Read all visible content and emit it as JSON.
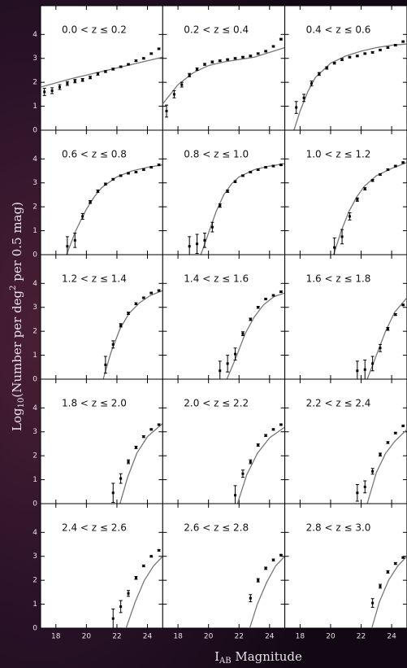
{
  "figure": {
    "ylabel": {
      "a": "Log",
      "b": "10",
      "c": "(Number per deg",
      "d": "2",
      "e": " per 0.5 mag)"
    },
    "xlabel": {
      "a": "I",
      "b": "AB",
      "c": " Magnitude"
    }
  },
  "chart_data": [
    {
      "type": "scatter",
      "title": "0.0 < z ≤ 0.2",
      "color": "#000000",
      "model_color": "#777777",
      "xlim": [
        17,
        25
      ],
      "ylim": [
        0,
        5.2
      ],
      "xticks": [
        18,
        20,
        22,
        24
      ],
      "yticks": [
        0,
        1,
        2,
        3,
        4
      ],
      "x": [
        17.25,
        17.75,
        18.25,
        18.75,
        19.25,
        19.75,
        20.25,
        20.75,
        21.25,
        21.75,
        22.25,
        22.75,
        23.25,
        23.75,
        24.25,
        24.75
      ],
      "values": [
        1.6,
        1.65,
        1.8,
        1.95,
        2.05,
        2.1,
        2.2,
        2.35,
        2.45,
        2.55,
        2.65,
        2.75,
        2.9,
        3.0,
        3.2,
        3.4
      ],
      "errors": [
        0.15,
        0.12,
        0.1,
        0.08,
        0.07,
        0.06,
        0.05,
        0.05,
        0.04,
        0.04,
        0.03,
        0.03,
        0.03,
        0.03,
        0.03,
        0.03
      ],
      "model_x": [
        17,
        19,
        21,
        23,
        25
      ],
      "model_y": [
        1.8,
        2.15,
        2.45,
        2.75,
        3.05
      ]
    },
    {
      "type": "scatter",
      "title": "0.2 < z ≤ 0.4",
      "color": "#000000",
      "model_color": "#777777",
      "xlim": [
        17,
        25
      ],
      "ylim": [
        0,
        5.2
      ],
      "xticks": [
        18,
        20,
        22,
        24
      ],
      "yticks": [
        0,
        1,
        2,
        3,
        4
      ],
      "x": [
        17.25,
        17.75,
        18.25,
        18.75,
        19.25,
        19.75,
        20.25,
        20.75,
        21.25,
        21.75,
        22.25,
        22.75,
        23.25,
        23.75,
        24.25,
        24.75
      ],
      "values": [
        0.8,
        1.5,
        1.9,
        2.3,
        2.55,
        2.75,
        2.85,
        2.9,
        2.95,
        3.0,
        3.05,
        3.1,
        3.2,
        3.3,
        3.5,
        3.8
      ],
      "errors": [
        0.25,
        0.15,
        0.1,
        0.07,
        0.05,
        0.04,
        0.04,
        0.03,
        0.03,
        0.03,
        0.03,
        0.03,
        0.03,
        0.03,
        0.03,
        0.03
      ],
      "model_x": [
        17,
        17.5,
        18,
        19,
        20,
        21,
        22,
        23,
        24,
        25
      ],
      "model_y": [
        1.1,
        1.5,
        1.9,
        2.4,
        2.7,
        2.85,
        2.95,
        3.05,
        3.25,
        3.45
      ]
    },
    {
      "type": "scatter",
      "title": "0.4 < z ≤ 0.6",
      "color": "#000000",
      "model_color": "#777777",
      "xlim": [
        17,
        25
      ],
      "ylim": [
        0,
        5.2
      ],
      "xticks": [
        18,
        20,
        22,
        24
      ],
      "yticks": [
        0,
        1,
        2,
        3,
        4
      ],
      "x": [
        17.75,
        18.25,
        18.75,
        19.25,
        19.75,
        20.25,
        20.75,
        21.25,
        21.75,
        22.25,
        22.75,
        23.25,
        23.75,
        24.25,
        24.75
      ],
      "values": [
        0.95,
        1.35,
        1.95,
        2.35,
        2.6,
        2.8,
        2.95,
        3.05,
        3.1,
        3.2,
        3.25,
        3.35,
        3.45,
        3.55,
        3.7
      ],
      "errors": [
        0.25,
        0.15,
        0.1,
        0.06,
        0.05,
        0.04,
        0.04,
        0.03,
        0.03,
        0.03,
        0.03,
        0.03,
        0.03,
        0.03,
        0.03
      ],
      "model_x": [
        17.6,
        18,
        18.5,
        19,
        20,
        21,
        22,
        23,
        24,
        25
      ],
      "model_y": [
        0,
        0.8,
        1.6,
        2.2,
        2.8,
        3.1,
        3.3,
        3.45,
        3.55,
        3.6
      ]
    },
    {
      "type": "scatter",
      "title": "0.6 < z ≤ 0.8",
      "color": "#000000",
      "model_color": "#777777",
      "xlim": [
        17,
        25
      ],
      "ylim": [
        0,
        5.2
      ],
      "xticks": [
        18,
        20,
        22,
        24
      ],
      "yticks": [
        0,
        1,
        2,
        3,
        4
      ],
      "x": [
        18.75,
        19.25,
        19.75,
        20.25,
        20.75,
        21.25,
        21.75,
        22.25,
        22.75,
        23.25,
        23.75,
        24.25,
        24.75
      ],
      "values": [
        0.35,
        0.6,
        1.6,
        2.2,
        2.65,
        2.95,
        3.15,
        3.3,
        3.4,
        3.45,
        3.55,
        3.65,
        3.75
      ],
      "errors": [
        0.4,
        0.3,
        0.12,
        0.06,
        0.05,
        0.04,
        0.03,
        0.03,
        0.03,
        0.03,
        0.03,
        0.03,
        0.03
      ],
      "model_x": [
        18.7,
        19.3,
        20,
        20.5,
        21,
        22,
        23,
        24,
        25
      ],
      "model_y": [
        0,
        1,
        1.9,
        2.4,
        2.8,
        3.25,
        3.5,
        3.65,
        3.75
      ]
    },
    {
      "type": "scatter",
      "title": "0.8 < z ≤ 1.0",
      "color": "#000000",
      "model_color": "#777777",
      "xlim": [
        17,
        25
      ],
      "ylim": [
        0,
        5.2
      ],
      "xticks": [
        18,
        20,
        22,
        24
      ],
      "yticks": [
        0,
        1,
        2,
        3,
        4
      ],
      "x": [
        18.75,
        19.25,
        19.75,
        20.25,
        20.75,
        21.25,
        21.75,
        22.25,
        22.75,
        23.25,
        23.75,
        24.25,
        24.75
      ],
      "values": [
        0.35,
        0.45,
        0.6,
        1.15,
        2.05,
        2.65,
        3.05,
        3.3,
        3.45,
        3.55,
        3.65,
        3.7,
        3.75
      ],
      "errors": [
        0.4,
        0.4,
        0.3,
        0.2,
        0.07,
        0.05,
        0.04,
        0.03,
        0.03,
        0.03,
        0.03,
        0.03,
        0.03
      ],
      "model_x": [
        19.5,
        20,
        20.5,
        21,
        21.5,
        22,
        23,
        24,
        25
      ],
      "model_y": [
        0,
        0.9,
        1.8,
        2.5,
        2.95,
        3.25,
        3.55,
        3.7,
        3.8
      ]
    },
    {
      "type": "scatter",
      "title": "1.0 < z ≤ 1.2",
      "color": "#000000",
      "model_color": "#777777",
      "xlim": [
        17,
        25
      ],
      "ylim": [
        0,
        5.2
      ],
      "xticks": [
        18,
        20,
        22,
        24
      ],
      "yticks": [
        0,
        1,
        2,
        3,
        4
      ],
      "x": [
        20.25,
        20.75,
        21.25,
        21.75,
        22.25,
        22.75,
        23.25,
        23.75,
        24.25,
        24.75
      ],
      "values": [
        0.3,
        0.75,
        1.6,
        2.3,
        2.75,
        3.1,
        3.35,
        3.55,
        3.7,
        3.85
      ],
      "errors": [
        0.4,
        0.3,
        0.15,
        0.07,
        0.05,
        0.04,
        0.03,
        0.03,
        0.03,
        0.03
      ],
      "model_x": [
        20.2,
        20.7,
        21.2,
        21.7,
        22.2,
        23,
        24,
        25
      ],
      "model_y": [
        0,
        1,
        1.8,
        2.4,
        2.85,
        3.3,
        3.6,
        3.85
      ]
    },
    {
      "type": "scatter",
      "title": "1.2 < z ≤ 1.4",
      "color": "#000000",
      "model_color": "#777777",
      "xlim": [
        17,
        25
      ],
      "ylim": [
        0,
        5.2
      ],
      "xticks": [
        18,
        20,
        22,
        24
      ],
      "yticks": [
        0,
        1,
        2,
        3,
        4
      ],
      "x": [
        21.25,
        21.75,
        22.25,
        22.75,
        23.25,
        23.75,
        24.25,
        24.75
      ],
      "values": [
        0.6,
        1.45,
        2.25,
        2.75,
        3.15,
        3.4,
        3.6,
        3.7
      ],
      "errors": [
        0.35,
        0.15,
        0.07,
        0.05,
        0.04,
        0.03,
        0.03,
        0.03
      ],
      "model_x": [
        21.1,
        21.6,
        22.2,
        22.8,
        23.5,
        24.2,
        25
      ],
      "model_y": [
        0,
        1.1,
        2.1,
        2.75,
        3.2,
        3.5,
        3.7
      ]
    },
    {
      "type": "scatter",
      "title": "1.4 < z ≤ 1.6",
      "color": "#000000",
      "model_color": "#777777",
      "xlim": [
        17,
        25
      ],
      "ylim": [
        0,
        5.2
      ],
      "xticks": [
        18,
        20,
        22,
        24
      ],
      "yticks": [
        0,
        1,
        2,
        3,
        4
      ],
      "x": [
        20.75,
        21.25,
        21.75,
        22.25,
        22.75,
        23.25,
        23.75,
        24.25,
        24.75
      ],
      "values": [
        0.35,
        0.65,
        1.05,
        1.9,
        2.5,
        3.0,
        3.35,
        3.5,
        3.65
      ],
      "errors": [
        0.4,
        0.35,
        0.25,
        0.08,
        0.05,
        0.04,
        0.03,
        0.03,
        0.03
      ],
      "model_x": [
        21.2,
        21.8,
        22.4,
        23,
        23.6,
        24.3,
        25
      ],
      "model_y": [
        0,
        0.9,
        1.9,
        2.6,
        3.1,
        3.45,
        3.6
      ]
    },
    {
      "type": "scatter",
      "title": "1.6 < z ≤ 1.8",
      "color": "#000000",
      "model_color": "#777777",
      "xlim": [
        17,
        25
      ],
      "ylim": [
        0,
        5.2
      ],
      "xticks": [
        18,
        20,
        22,
        24
      ],
      "yticks": [
        0,
        1,
        2,
        3,
        4
      ],
      "x": [
        21.75,
        22.25,
        22.75,
        23.25,
        23.75,
        24.25,
        24.75
      ],
      "values": [
        0.35,
        0.4,
        0.65,
        1.3,
        2.1,
        2.7,
        3.1
      ],
      "errors": [
        0.4,
        0.4,
        0.3,
        0.15,
        0.06,
        0.04,
        0.03
      ],
      "model_x": [
        22.4,
        23,
        23.6,
        24.2,
        25
      ],
      "model_y": [
        0,
        1,
        2,
        2.8,
        3.4
      ]
    },
    {
      "type": "scatter",
      "title": "1.8 < z ≤ 2.0",
      "color": "#000000",
      "model_color": "#777777",
      "xlim": [
        17,
        25
      ],
      "ylim": [
        0,
        5.2
      ],
      "xticks": [
        18,
        20,
        22,
        24
      ],
      "yticks": [
        0,
        1,
        2,
        3,
        4
      ],
      "x": [
        21.75,
        22.25,
        22.75,
        23.25,
        23.75,
        24.25,
        24.75
      ],
      "values": [
        0.45,
        1.05,
        1.75,
        2.35,
        2.8,
        3.1,
        3.3
      ],
      "errors": [
        0.4,
        0.2,
        0.08,
        0.05,
        0.04,
        0.03,
        0.03
      ],
      "model_x": [
        22.2,
        22.7,
        23.3,
        24,
        25
      ],
      "model_y": [
        0,
        1.1,
        2.1,
        2.8,
        3.35
      ]
    },
    {
      "type": "scatter",
      "title": "2.0 < z ≤ 2.2",
      "color": "#000000",
      "model_color": "#777777",
      "xlim": [
        17,
        25
      ],
      "ylim": [
        0,
        5.2
      ],
      "xticks": [
        18,
        20,
        22,
        24
      ],
      "yticks": [
        0,
        1,
        2,
        3,
        4
      ],
      "x": [
        21.75,
        22.25,
        22.75,
        23.25,
        23.75,
        24.25,
        24.75
      ],
      "values": [
        0.35,
        1.25,
        1.75,
        2.45,
        2.85,
        3.1,
        3.3
      ],
      "errors": [
        0.4,
        0.15,
        0.08,
        0.05,
        0.04,
        0.03,
        0.03
      ],
      "model_x": [
        21.9,
        22.5,
        23.2,
        24,
        25
      ],
      "model_y": [
        0,
        1.2,
        2.1,
        2.75,
        3.2
      ]
    },
    {
      "type": "scatter",
      "title": "2.2 < z ≤ 2.4",
      "color": "#000000",
      "model_color": "#777777",
      "xlim": [
        17,
        25
      ],
      "ylim": [
        0,
        5.2
      ],
      "xticks": [
        18,
        20,
        22,
        24
      ],
      "yticks": [
        0,
        1,
        2,
        3,
        4
      ],
      "x": [
        21.75,
        22.25,
        22.75,
        23.25,
        23.75,
        24.25,
        24.75
      ],
      "values": [
        0.45,
        0.7,
        1.35,
        2.05,
        2.55,
        2.95,
        3.25
      ],
      "errors": [
        0.35,
        0.25,
        0.12,
        0.06,
        0.04,
        0.03,
        0.03
      ],
      "model_x": [
        22.4,
        23,
        23.6,
        24.2,
        25
      ],
      "model_y": [
        0,
        1.3,
        2.1,
        2.6,
        3.1
      ]
    },
    {
      "type": "scatter",
      "title": "2.4 < z ≤ 2.6",
      "color": "#000000",
      "model_color": "#777777",
      "xlim": [
        17,
        25
      ],
      "ylim": [
        0,
        5.2
      ],
      "xticks": [
        18,
        20,
        22,
        24
      ],
      "yticks": [
        0,
        1,
        2,
        3,
        4
      ],
      "x": [
        21.75,
        22.25,
        22.75,
        23.25,
        23.75,
        24.25,
        24.75
      ],
      "values": [
        0.4,
        0.9,
        1.45,
        2.1,
        2.6,
        3.0,
        3.25
      ],
      "errors": [
        0.4,
        0.25,
        0.12,
        0.06,
        0.04,
        0.03,
        0.03
      ],
      "model_x": [
        22.6,
        23.2,
        23.8,
        24.4,
        25
      ],
      "model_y": [
        0,
        1.1,
        2,
        2.6,
        3.0
      ]
    },
    {
      "type": "scatter",
      "title": "2.6 < z ≤ 2.8",
      "color": "#000000",
      "model_color": "#777777",
      "xlim": [
        17,
        25
      ],
      "ylim": [
        0,
        5.2
      ],
      "xticks": [
        18,
        20,
        22,
        24
      ],
      "yticks": [
        0,
        1,
        2,
        3,
        4
      ],
      "x": [
        22.75,
        23.25,
        23.75,
        24.25,
        24.75
      ],
      "values": [
        1.25,
        2.0,
        2.5,
        2.85,
        3.05
      ],
      "errors": [
        0.15,
        0.07,
        0.05,
        0.04,
        0.03
      ],
      "model_x": [
        22.7,
        23.2,
        23.8,
        24.4,
        25
      ],
      "model_y": [
        0,
        1,
        1.9,
        2.6,
        3.0
      ]
    },
    {
      "type": "scatter",
      "title": "2.8 < z ≤ 3.0",
      "color": "#000000",
      "model_color": "#777777",
      "xlim": [
        17,
        25
      ],
      "ylim": [
        0,
        5.2
      ],
      "xticks": [
        18,
        20,
        22,
        24
      ],
      "yticks": [
        0,
        1,
        2,
        3,
        4
      ],
      "x": [
        22.75,
        23.25,
        23.75,
        24.25,
        24.75
      ],
      "values": [
        1.05,
        1.75,
        2.35,
        2.7,
        2.95
      ],
      "errors": [
        0.18,
        0.08,
        0.05,
        0.04,
        0.03
      ],
      "model_x": [
        22.7,
        23.2,
        23.8,
        24.4,
        25
      ],
      "model_y": [
        0,
        1.1,
        2,
        2.6,
        3.0
      ]
    }
  ]
}
